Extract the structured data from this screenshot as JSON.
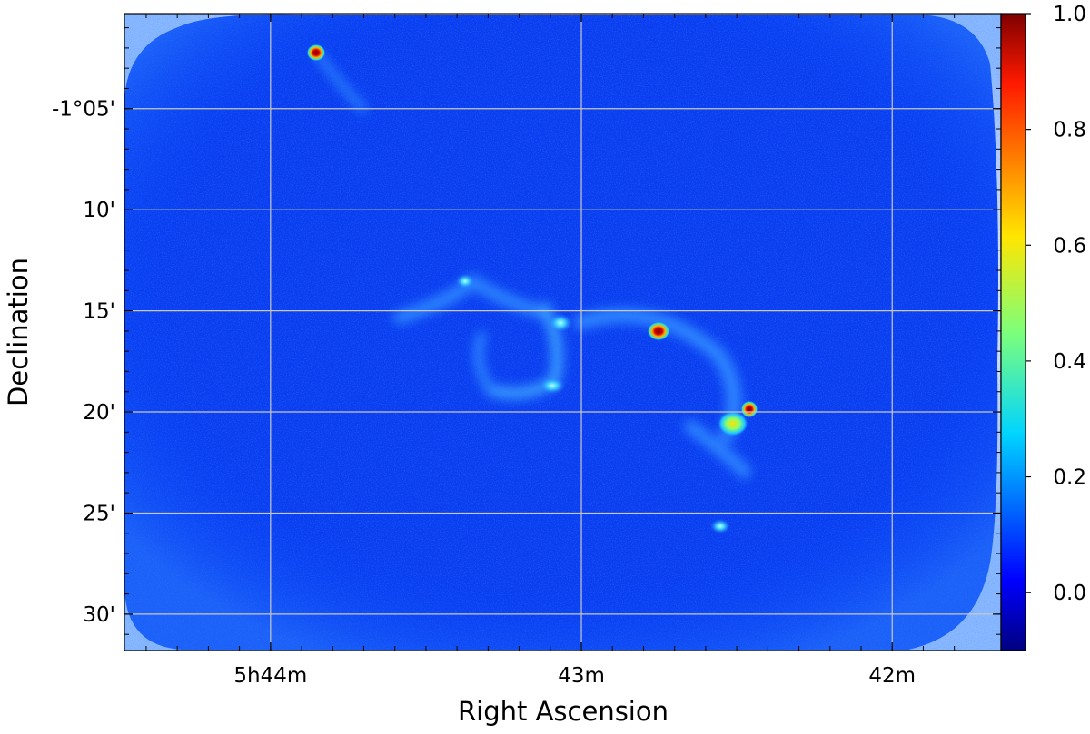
{
  "chart_data": {
    "type": "heatmap",
    "title": "",
    "xlabel": "Right Ascension",
    "ylabel": "Declination",
    "x_ticks": [
      {
        "label": "5h44m",
        "ra_min": 44
      },
      {
        "label": "43m",
        "ra_min": 43
      },
      {
        "label": "42m",
        "ra_min": 42
      }
    ],
    "y_ticks": [
      {
        "label": "-1°05'",
        "dec_arcmin": 5
      },
      {
        "label": "10'",
        "dec_arcmin": 10
      },
      {
        "label": "15'",
        "dec_arcmin": 15
      },
      {
        "label": "20'",
        "dec_arcmin": 20
      },
      {
        "label": "25'",
        "dec_arcmin": 25
      },
      {
        "label": "30'",
        "dec_arcmin": 30
      }
    ],
    "xlim_ra_min": [
      44.47,
      41.65
    ],
    "ylim_dec_arcmin": [
      0.3,
      31.8
    ],
    "grid": true,
    "colormap": "jet",
    "colorbar": {
      "range": [
        -0.1,
        1.0
      ],
      "ticks": [
        "0.0",
        "0.2",
        "0.4",
        "0.6",
        "0.8",
        "1.0"
      ],
      "tick_values": [
        0.0,
        0.2,
        0.4,
        0.6,
        0.8,
        1.0
      ]
    },
    "background_level": 0.05,
    "sources": [
      {
        "ra_min": 43.86,
        "dec_arcmin": 2.7,
        "peak": 1.0
      },
      {
        "ra_min": 42.77,
        "dec_arcmin": 16.2,
        "peak": 1.0
      },
      {
        "ra_min": 42.47,
        "dec_arcmin": 20.0,
        "peak": 1.0
      },
      {
        "ra_min": 42.52,
        "dec_arcmin": 20.8,
        "peak": 0.6
      },
      {
        "ra_min": 43.38,
        "dec_arcmin": 13.8,
        "peak": 0.3
      },
      {
        "ra_min": 43.08,
        "dec_arcmin": 15.8,
        "peak": 0.35
      },
      {
        "ra_min": 42.57,
        "dec_arcmin": 25.6,
        "peak": 0.25
      }
    ]
  }
}
